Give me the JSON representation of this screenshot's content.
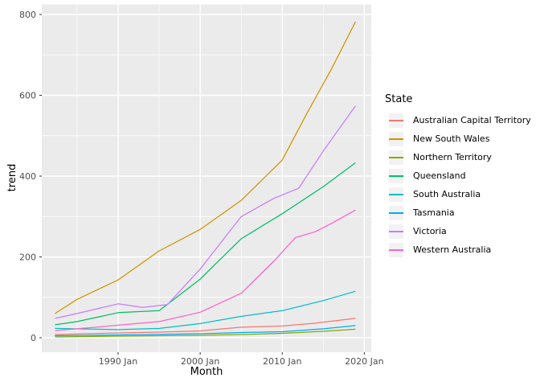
{
  "chart_data": {
    "type": "line",
    "title": "",
    "xlabel": "Month",
    "ylabel": "trend",
    "legend_title": "State",
    "legend_position": "right",
    "grid": true,
    "colors": {
      "panel_background": "#EBEBEB",
      "grid_line": "#FFFFFF",
      "figure_background": "#FFFFFF",
      "legend_key_background": "#F2F2F2",
      "axis_text": "#4D4D4D",
      "tick_mark": "#333333"
    },
    "x_axis": {
      "major_ticks": [
        1990,
        2000,
        2010,
        2020
      ],
      "tick_labels": [
        "1990 Jan",
        "2000 Jan",
        "2010 Jan",
        "2020 Jan"
      ],
      "minor_ticks": [
        1985,
        1995,
        2005,
        2015
      ],
      "data_range": [
        1982.3,
        2018.92
      ]
    },
    "y_axis": {
      "major_ticks": [
        0,
        200,
        400,
        600,
        800
      ],
      "tick_labels": [
        "0",
        "200",
        "400",
        "600",
        "800"
      ],
      "minor_ticks": [
        100,
        300,
        500,
        700
      ],
      "ylim": [
        -40,
        822
      ]
    },
    "series": [
      {
        "name": "Australian Capital Territory",
        "color": "#F8766D",
        "points": [
          [
            1982.3,
            8
          ],
          [
            1990,
            12
          ],
          [
            1995,
            14
          ],
          [
            2000,
            17
          ],
          [
            2005,
            26
          ],
          [
            2010,
            29
          ],
          [
            2014,
            36
          ],
          [
            2018.92,
            48
          ]
        ]
      },
      {
        "name": "New South Wales",
        "color": "#CD9600",
        "points": [
          [
            1982.3,
            60
          ],
          [
            1985,
            95
          ],
          [
            1990,
            143
          ],
          [
            1995,
            215
          ],
          [
            2000,
            268
          ],
          [
            2005,
            340
          ],
          [
            2010,
            440
          ],
          [
            2013,
            555
          ],
          [
            2016,
            665
          ],
          [
            2018.92,
            782
          ]
        ]
      },
      {
        "name": "Northern Territory",
        "color": "#7CAE00",
        "points": [
          [
            1982.3,
            2
          ],
          [
            1990,
            4
          ],
          [
            2000,
            6
          ],
          [
            2005,
            8
          ],
          [
            2010,
            11
          ],
          [
            2015,
            16
          ],
          [
            2018.92,
            21
          ]
        ]
      },
      {
        "name": "Queensland",
        "color": "#00BE67",
        "points": [
          [
            1982.3,
            32
          ],
          [
            1985,
            40
          ],
          [
            1990,
            62
          ],
          [
            1995,
            67
          ],
          [
            2000,
            145
          ],
          [
            2005,
            245
          ],
          [
            2010,
            307
          ],
          [
            2015,
            374
          ],
          [
            2018.92,
            433
          ]
        ]
      },
      {
        "name": "South Australia",
        "color": "#00BFC4",
        "points": [
          [
            1982.3,
            23
          ],
          [
            1990,
            20
          ],
          [
            1995,
            23
          ],
          [
            2000,
            35
          ],
          [
            2005,
            53
          ],
          [
            2010,
            67
          ],
          [
            2015,
            92
          ],
          [
            2018.92,
            115
          ]
        ]
      },
      {
        "name": "Tasmania",
        "color": "#00A9FF",
        "points": [
          [
            1982.3,
            5
          ],
          [
            1990,
            7
          ],
          [
            2000,
            10
          ],
          [
            2005,
            13
          ],
          [
            2010,
            15
          ],
          [
            2015,
            22
          ],
          [
            2018.92,
            30
          ]
        ]
      },
      {
        "name": "Victoria",
        "color": "#C77CFF",
        "points": [
          [
            1982.3,
            48
          ],
          [
            1985,
            60
          ],
          [
            1990,
            84
          ],
          [
            1993,
            75
          ],
          [
            1996,
            82
          ],
          [
            2000,
            170
          ],
          [
            2005,
            300
          ],
          [
            2009,
            345
          ],
          [
            2012,
            370
          ],
          [
            2015,
            462
          ],
          [
            2018.92,
            574
          ]
        ]
      },
      {
        "name": "Western Australia",
        "color": "#FF61CC",
        "points": [
          [
            1982.3,
            18
          ],
          [
            1985,
            22
          ],
          [
            1990,
            31
          ],
          [
            1995,
            40
          ],
          [
            2000,
            63
          ],
          [
            2005,
            110
          ],
          [
            2009,
            190
          ],
          [
            2011.6,
            248
          ],
          [
            2014,
            262
          ],
          [
            2016,
            283
          ],
          [
            2018.92,
            316
          ]
        ]
      }
    ]
  }
}
